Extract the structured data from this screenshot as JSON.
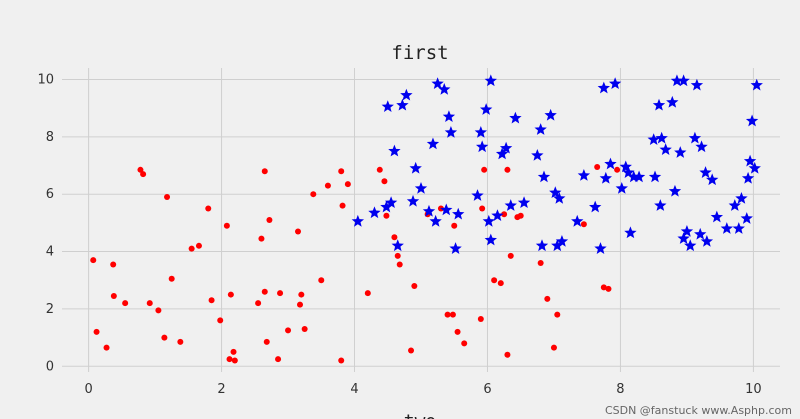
{
  "watermark": "CSDN @fanstuck  www.Asphp.com",
  "chart_data": {
    "type": "scatter",
    "title": "first",
    "xlabel": "two",
    "ylabel": "",
    "xlim": [
      -0.4,
      10.4
    ],
    "ylim": [
      -0.2,
      10.4
    ],
    "xticks": [
      0,
      2,
      4,
      6,
      8,
      10
    ],
    "yticks": [
      0,
      2,
      4,
      6,
      8,
      10
    ],
    "grid": true,
    "series": [
      {
        "marker": "circle",
        "color": "#ff0000",
        "points": [
          [
            0.07,
            3.7
          ],
          [
            0.12,
            1.2
          ],
          [
            0.27,
            0.65
          ],
          [
            0.37,
            3.55
          ],
          [
            0.38,
            2.45
          ],
          [
            0.55,
            2.2
          ],
          [
            0.78,
            6.85
          ],
          [
            0.82,
            6.7
          ],
          [
            0.92,
            2.2
          ],
          [
            1.05,
            1.95
          ],
          [
            1.14,
            1.0
          ],
          [
            1.18,
            5.9
          ],
          [
            1.25,
            3.05
          ],
          [
            1.38,
            0.85
          ],
          [
            1.55,
            4.1
          ],
          [
            1.66,
            4.2
          ],
          [
            1.8,
            5.5
          ],
          [
            1.85,
            2.3
          ],
          [
            1.98,
            1.6
          ],
          [
            2.08,
            4.9
          ],
          [
            2.12,
            0.25
          ],
          [
            2.14,
            2.5
          ],
          [
            2.18,
            0.5
          ],
          [
            2.2,
            0.2
          ],
          [
            2.55,
            2.2
          ],
          [
            2.6,
            4.45
          ],
          [
            2.65,
            2.6
          ],
          [
            2.65,
            6.8
          ],
          [
            2.68,
            0.85
          ],
          [
            2.72,
            5.1
          ],
          [
            2.85,
            0.25
          ],
          [
            2.88,
            2.55
          ],
          [
            3.0,
            1.25
          ],
          [
            3.15,
            4.7
          ],
          [
            3.18,
            2.15
          ],
          [
            3.2,
            2.5
          ],
          [
            3.25,
            1.3
          ],
          [
            3.38,
            6.0
          ],
          [
            3.5,
            3.0
          ],
          [
            3.6,
            6.3
          ],
          [
            3.8,
            6.8
          ],
          [
            3.82,
            5.6
          ],
          [
            3.8,
            0.2
          ],
          [
            3.9,
            6.35
          ],
          [
            4.2,
            2.55
          ],
          [
            4.38,
            6.85
          ],
          [
            4.45,
            6.45
          ],
          [
            4.48,
            5.25
          ],
          [
            4.6,
            4.5
          ],
          [
            4.65,
            3.85
          ],
          [
            4.68,
            3.55
          ],
          [
            4.85,
            0.55
          ],
          [
            4.9,
            2.8
          ],
          [
            5.1,
            5.3
          ],
          [
            5.3,
            5.5
          ],
          [
            5.4,
            1.8
          ],
          [
            5.48,
            1.8
          ],
          [
            5.5,
            4.9
          ],
          [
            5.55,
            1.2
          ],
          [
            5.65,
            0.8
          ],
          [
            5.9,
            1.65
          ],
          [
            5.92,
            5.5
          ],
          [
            5.95,
            6.85
          ],
          [
            6.1,
            3.0
          ],
          [
            6.2,
            2.9
          ],
          [
            6.25,
            5.3
          ],
          [
            6.3,
            6.85
          ],
          [
            6.3,
            0.4
          ],
          [
            6.35,
            3.85
          ],
          [
            6.45,
            5.2
          ],
          [
            6.5,
            5.25
          ],
          [
            6.8,
            3.6
          ],
          [
            6.9,
            2.35
          ],
          [
            7.0,
            0.65
          ],
          [
            7.05,
            1.8
          ],
          [
            7.45,
            4.95
          ],
          [
            7.65,
            6.95
          ],
          [
            7.75,
            2.75
          ],
          [
            7.82,
            2.7
          ],
          [
            7.95,
            6.85
          ]
        ]
      },
      {
        "marker": "star",
        "color": "#0000ee",
        "points": [
          [
            4.05,
            5.05
          ],
          [
            4.3,
            5.35
          ],
          [
            4.48,
            5.55
          ],
          [
            4.5,
            9.05
          ],
          [
            4.55,
            5.7
          ],
          [
            4.6,
            7.5
          ],
          [
            4.65,
            4.2
          ],
          [
            4.72,
            9.1
          ],
          [
            4.78,
            9.45
          ],
          [
            4.88,
            5.75
          ],
          [
            4.92,
            6.9
          ],
          [
            5.0,
            6.2
          ],
          [
            5.12,
            5.4
          ],
          [
            5.18,
            7.75
          ],
          [
            5.22,
            5.05
          ],
          [
            5.25,
            9.85
          ],
          [
            5.35,
            9.65
          ],
          [
            5.38,
            5.45
          ],
          [
            5.42,
            8.7
          ],
          [
            5.45,
            8.15
          ],
          [
            5.52,
            4.1
          ],
          [
            5.56,
            5.3
          ],
          [
            5.85,
            5.95
          ],
          [
            5.9,
            8.15
          ],
          [
            5.92,
            7.65
          ],
          [
            5.98,
            8.95
          ],
          [
            6.02,
            5.05
          ],
          [
            6.05,
            4.4
          ],
          [
            6.05,
            9.95
          ],
          [
            6.15,
            5.25
          ],
          [
            6.22,
            7.4
          ],
          [
            6.28,
            7.6
          ],
          [
            6.35,
            5.6
          ],
          [
            6.42,
            8.65
          ],
          [
            6.55,
            5.7
          ],
          [
            6.75,
            7.35
          ],
          [
            6.8,
            8.25
          ],
          [
            6.82,
            4.2
          ],
          [
            6.85,
            6.6
          ],
          [
            6.95,
            8.75
          ],
          [
            7.02,
            6.05
          ],
          [
            7.05,
            4.2
          ],
          [
            7.08,
            5.85
          ],
          [
            7.12,
            4.35
          ],
          [
            7.35,
            5.05
          ],
          [
            7.45,
            6.65
          ],
          [
            7.62,
            5.55
          ],
          [
            7.7,
            4.1
          ],
          [
            7.75,
            9.7
          ],
          [
            7.78,
            6.55
          ],
          [
            7.85,
            7.05
          ],
          [
            7.92,
            9.85
          ],
          [
            8.02,
            6.2
          ],
          [
            8.08,
            6.95
          ],
          [
            8.12,
            6.75
          ],
          [
            8.15,
            4.65
          ],
          [
            8.2,
            6.6
          ],
          [
            8.28,
            6.6
          ],
          [
            8.5,
            7.9
          ],
          [
            8.52,
            6.6
          ],
          [
            8.58,
            9.1
          ],
          [
            8.6,
            5.6
          ],
          [
            8.62,
            7.95
          ],
          [
            8.68,
            7.55
          ],
          [
            8.78,
            9.2
          ],
          [
            8.82,
            6.1
          ],
          [
            8.85,
            9.95
          ],
          [
            8.9,
            7.45
          ],
          [
            8.95,
            9.95
          ],
          [
            8.95,
            4.45
          ],
          [
            9.0,
            4.7
          ],
          [
            9.05,
            4.2
          ],
          [
            9.12,
            7.95
          ],
          [
            9.15,
            9.8
          ],
          [
            9.2,
            4.6
          ],
          [
            9.22,
            7.65
          ],
          [
            9.28,
            6.75
          ],
          [
            9.3,
            4.35
          ],
          [
            9.38,
            6.5
          ],
          [
            9.45,
            5.2
          ],
          [
            9.6,
            4.8
          ],
          [
            9.72,
            5.6
          ],
          [
            9.78,
            4.8
          ],
          [
            9.82,
            5.85
          ],
          [
            9.9,
            5.15
          ],
          [
            9.92,
            6.55
          ],
          [
            9.95,
            7.15
          ],
          [
            9.98,
            8.55
          ],
          [
            10.02,
            6.9
          ],
          [
            10.05,
            9.8
          ]
        ]
      }
    ]
  }
}
